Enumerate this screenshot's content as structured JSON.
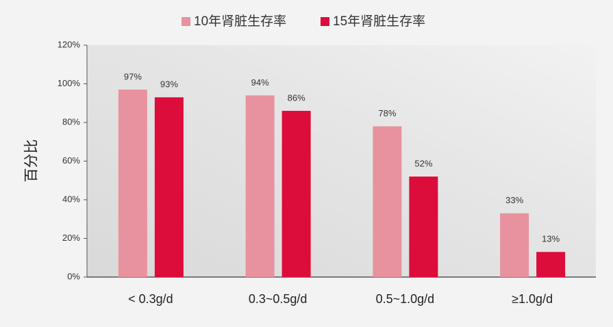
{
  "chart_data": {
    "type": "bar",
    "y_label": "百分比",
    "categories": [
      "< 0.3g/d",
      "0.3~0.5g/d",
      "0.5~1.0g/d",
      "≥1.0g/d"
    ],
    "series": [
      {
        "name": "10年肾脏生存率",
        "color": "#e8929f",
        "values": [
          97,
          94,
          78,
          33
        ],
        "value_labels": [
          "97%",
          "94%",
          "78%",
          "33%"
        ]
      },
      {
        "name": "15年肾脏生存率",
        "color": "#dc0c3b",
        "values": [
          93,
          86,
          52,
          13
        ],
        "value_labels": [
          "93%",
          "86%",
          "52%",
          "13%"
        ]
      }
    ],
    "ylim": [
      0,
      120
    ],
    "yticks": [
      {
        "value": 0,
        "label": "0%"
      },
      {
        "value": 20,
        "label": "20%"
      },
      {
        "value": 40,
        "label": "40%"
      },
      {
        "value": 60,
        "label": "60%"
      },
      {
        "value": 80,
        "label": "80%"
      },
      {
        "value": 100,
        "label": "100%"
      },
      {
        "value": 120,
        "label": "120%"
      }
    ],
    "legend": "top"
  }
}
